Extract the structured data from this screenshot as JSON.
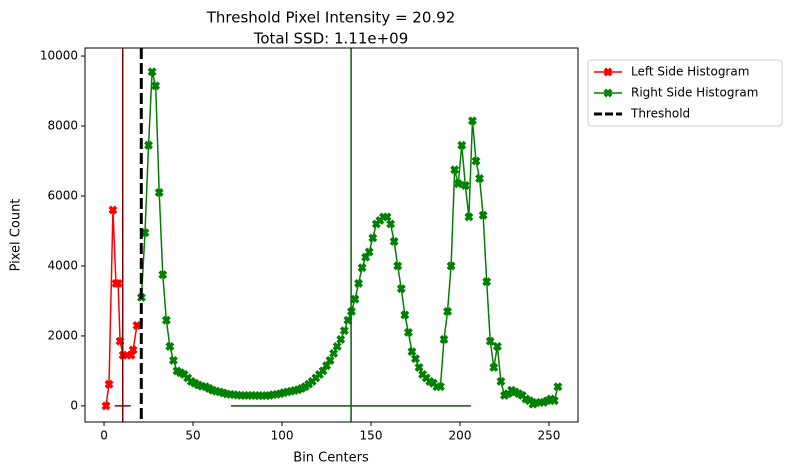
{
  "chart_data": {
    "type": "line",
    "title": "Threshold Pixel Intensity = 20.92",
    "subtitle": "Total SSD: 1.11e+09",
    "xlabel": "Bin Centers",
    "ylabel": "Pixel Count",
    "xlim": [
      -10.7,
      266.3
    ],
    "ylim": [
      -460,
      10230
    ],
    "xticks": [
      0,
      50,
      100,
      150,
      200,
      250
    ],
    "yticks": [
      0,
      2000,
      4000,
      6000,
      8000,
      10000
    ],
    "legend": "outside upper right",
    "series": [
      {
        "name": "Left Side Histogram",
        "color": "#ff0000",
        "marker": "X",
        "x": [
          1.1,
          2.8,
          5,
          6.7,
          7.9,
          9,
          10.7,
          12.9,
          15.2,
          16.3,
          18.5
        ],
        "values": [
          0,
          620,
          5600,
          3500,
          3500,
          1850,
          1450,
          1450,
          1450,
          1600,
          2300
        ]
      },
      {
        "name": "Right Side Histogram",
        "color": "#008000",
        "marker": "X",
        "x": [
          21,
          23,
          25,
          27,
          29,
          31,
          33,
          35,
          37,
          39,
          41,
          43,
          45,
          47,
          49,
          51,
          53,
          55,
          57,
          59,
          61,
          63,
          65,
          67,
          69,
          71,
          73,
          75,
          77,
          79,
          81,
          83,
          85,
          87,
          89,
          91,
          93,
          95,
          97,
          99,
          101,
          103,
          105,
          107,
          109,
          111,
          113,
          115,
          117,
          119,
          121,
          123,
          125,
          127,
          129,
          131,
          133,
          135,
          137,
          139,
          141,
          143,
          145,
          147,
          149,
          151,
          153,
          155,
          157,
          159,
          161,
          163,
          165,
          167,
          169,
          171,
          173,
          175,
          177,
          179,
          181,
          183,
          185,
          187,
          189,
          191,
          193,
          195,
          197,
          199,
          201,
          203,
          205,
          207,
          209,
          211,
          213,
          215,
          217,
          219,
          221,
          223,
          225,
          227,
          229,
          231,
          233,
          235,
          237,
          239,
          241,
          243,
          245,
          247,
          249,
          251,
          253,
          255
        ],
        "values": [
          3100,
          4950,
          7450,
          9550,
          9150,
          6100,
          3750,
          2450,
          1700,
          1300,
          1000,
          950,
          900,
          800,
          700,
          650,
          600,
          560,
          550,
          500,
          450,
          420,
          400,
          370,
          340,
          330,
          320,
          310,
          300,
          300,
          300,
          300,
          300,
          290,
          300,
          290,
          300,
          320,
          330,
          350,
          380,
          400,
          420,
          440,
          460,
          500,
          550,
          620,
          700,
          800,
          900,
          1000,
          1150,
          1300,
          1500,
          1700,
          1900,
          2150,
          2450,
          2700,
          3050,
          3500,
          3950,
          4250,
          4400,
          4800,
          5200,
          5300,
          5400,
          5400,
          5200,
          4700,
          4000,
          3350,
          2600,
          2100,
          1550,
          1350,
          1100,
          900,
          800,
          700,
          650,
          550,
          550,
          1900,
          2700,
          4000,
          6750,
          6350,
          7450,
          6300,
          5400,
          8150,
          7000,
          6500,
          5450,
          3550,
          1850,
          1100,
          1700,
          700,
          300,
          350,
          450,
          400,
          350,
          300,
          200,
          150,
          50,
          100,
          100,
          100,
          150,
          200,
          150,
          550
        ]
      }
    ],
    "threshold": {
      "name": "Threshold",
      "value": 20.92,
      "color": "#000000",
      "style": "dashed"
    },
    "mean_lines": [
      {
        "x": 10.5,
        "span": [
          6,
          15
        ],
        "color": "#800000"
      },
      {
        "x": 138.8,
        "span": [
          71.3,
          206.2
        ],
        "color": "#006400"
      }
    ]
  }
}
